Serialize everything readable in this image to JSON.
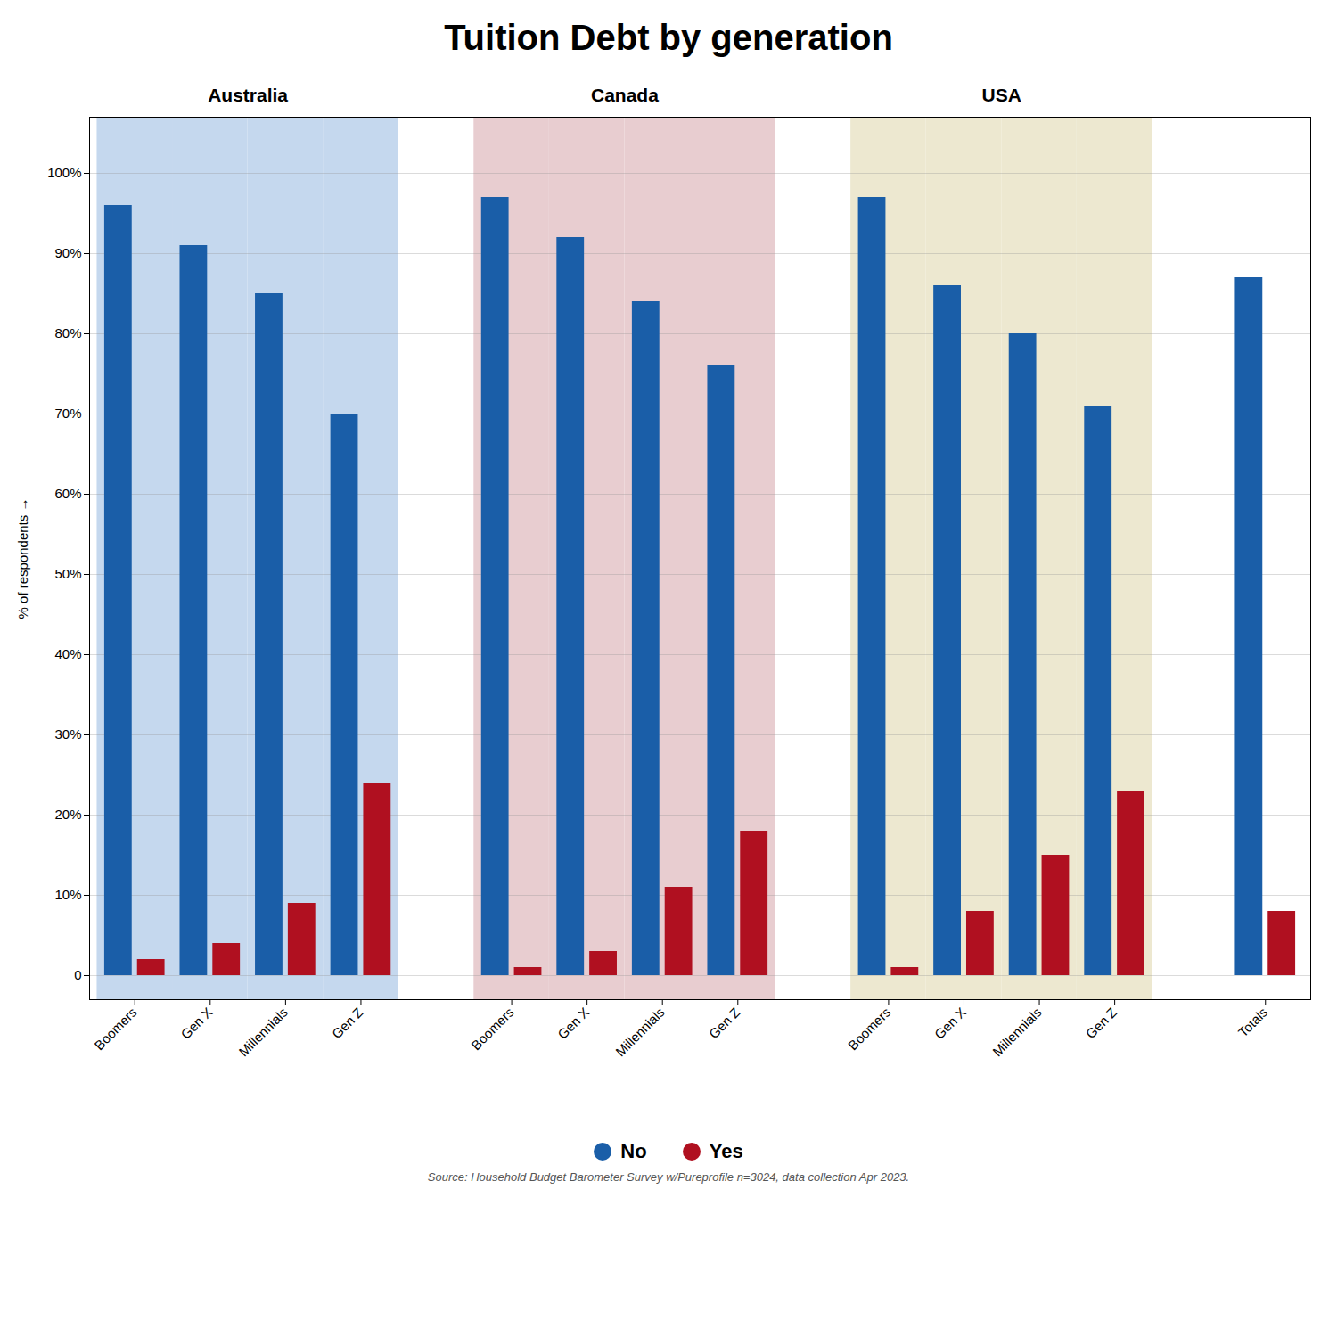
{
  "chart_data": {
    "type": "bar",
    "title": "Tuition Debt by generation",
    "ylabel": "% of respondents",
    "source": "Source: Household Budget Barometer Survey w/Pureprofile n=3024, data collection Apr 2023.",
    "categories": [
      "Boomers",
      "Gen X",
      "Millennials",
      "Gen Z",
      "Boomers",
      "Gen X",
      "Millennials",
      "Gen Z",
      "Boomers",
      "Gen X",
      "Millennials",
      "Gen Z",
      "Totals"
    ],
    "series": [
      {
        "name": "No",
        "color": "#1a5ea8",
        "values": [
          96,
          91,
          85,
          70,
          97,
          92,
          84,
          76,
          97,
          86,
          80,
          71,
          87
        ]
      },
      {
        "name": "Yes",
        "color": "#b01020",
        "values": [
          2,
          4,
          9,
          24,
          1,
          3,
          11,
          18,
          1,
          8,
          15,
          23,
          8
        ]
      }
    ],
    "groups": [
      {
        "name": "Australia",
        "color": "#c5d8ee",
        "count": 4
      },
      {
        "name": "Canada",
        "color": "#e8cdd0",
        "count": 4
      },
      {
        "name": "USA",
        "color": "#ede8d0",
        "count": 4
      }
    ],
    "ylim": [
      -3,
      107
    ],
    "yticks": [
      0,
      {
        "value": 10,
        "label": "10%"
      },
      {
        "value": 20,
        "label": "20%"
      },
      {
        "value": 30,
        "label": "30%"
      },
      {
        "value": 40,
        "label": "40%"
      },
      {
        "value": 50,
        "label": "50%"
      },
      {
        "value": 60,
        "label": "60%"
      },
      {
        "value": 70,
        "label": "70%"
      },
      {
        "value": 80,
        "label": "80%"
      },
      {
        "value": 90,
        "label": "90%"
      },
      {
        "value": 100,
        "label": "100%"
      }
    ],
    "grid": true,
    "legend": "bottom"
  }
}
